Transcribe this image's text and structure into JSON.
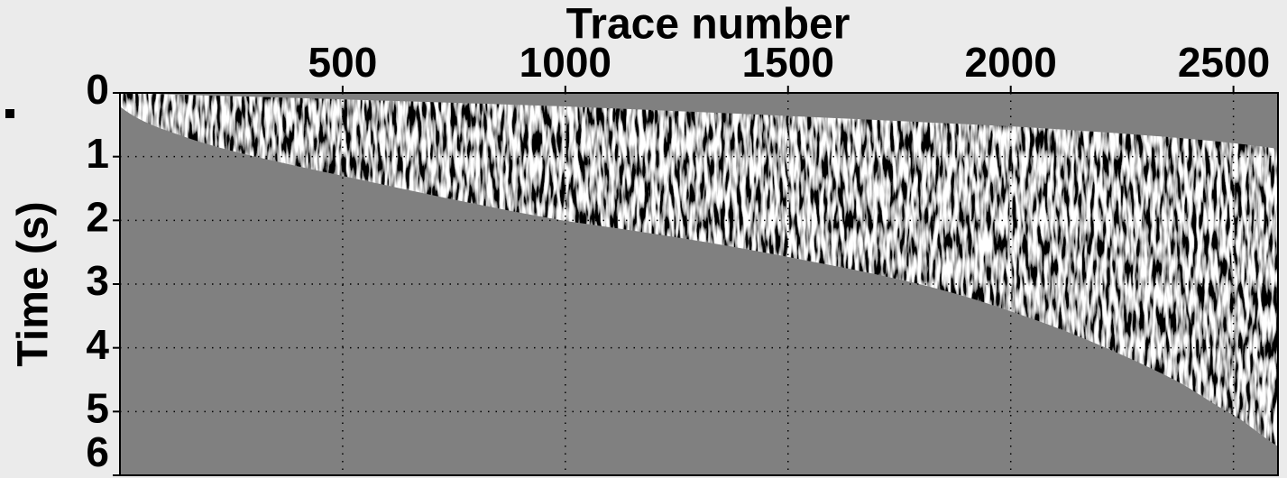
{
  "chart_data": {
    "type": "image",
    "x_label": "Trace number",
    "y_label": "Time (s)",
    "xlim": [
      0,
      2600
    ],
    "xticks": [
      500,
      1000,
      1500,
      2000,
      2500
    ],
    "ylim": [
      0,
      6
    ],
    "yticks": [
      0,
      1,
      2,
      3,
      4,
      5,
      6
    ],
    "x_axis_position": "top",
    "grid": true
  }
}
